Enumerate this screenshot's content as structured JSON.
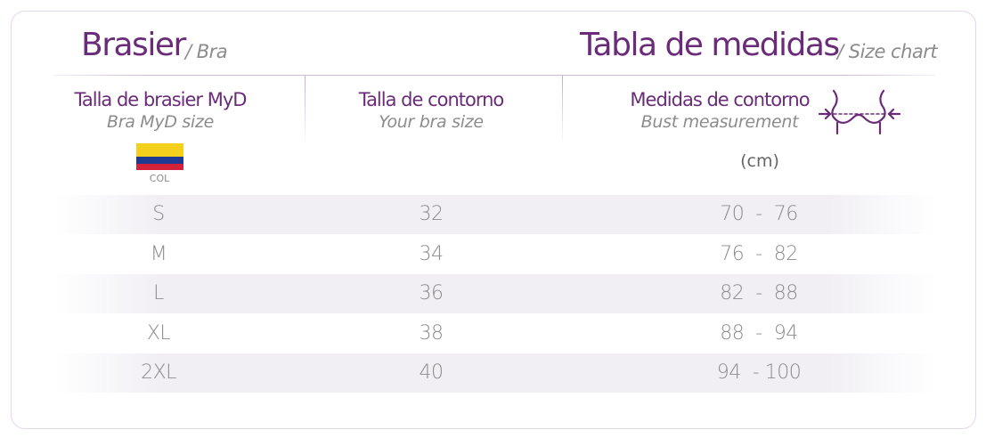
{
  "header": {
    "left_title": "Brasier",
    "left_subtitle": "/ Bra",
    "right_title": "Tabla de medidas",
    "right_subtitle": "/ Size chart"
  },
  "columns": [
    {
      "label": "Talla de brasier MyD",
      "sublabel": "Bra MyD size",
      "flag_caption": "COL"
    },
    {
      "label": "Talla de contorno",
      "sublabel": "Your bra size"
    },
    {
      "label": "Medidas de contorno",
      "sublabel": "Bust measurement",
      "unit": "(cm)",
      "icon": "bust-measurement-icon"
    }
  ],
  "colors": {
    "accent": "#6a2c78",
    "text": "#8c8c8c",
    "flag_yellow": "#f4d01c",
    "flag_blue": "#1f3a93",
    "flag_red": "#d3213a"
  },
  "rows": [
    {
      "size": "S",
      "band": "32",
      "bust": "70  -  76"
    },
    {
      "size": "M",
      "band": "34",
      "bust": "76  -  82"
    },
    {
      "size": "L",
      "band": "36",
      "bust": "82  -  88"
    },
    {
      "size": "XL",
      "band": "38",
      "bust": "88  -  94"
    },
    {
      "size": "2XL",
      "band": "40",
      "bust": "94  - 100"
    }
  ]
}
